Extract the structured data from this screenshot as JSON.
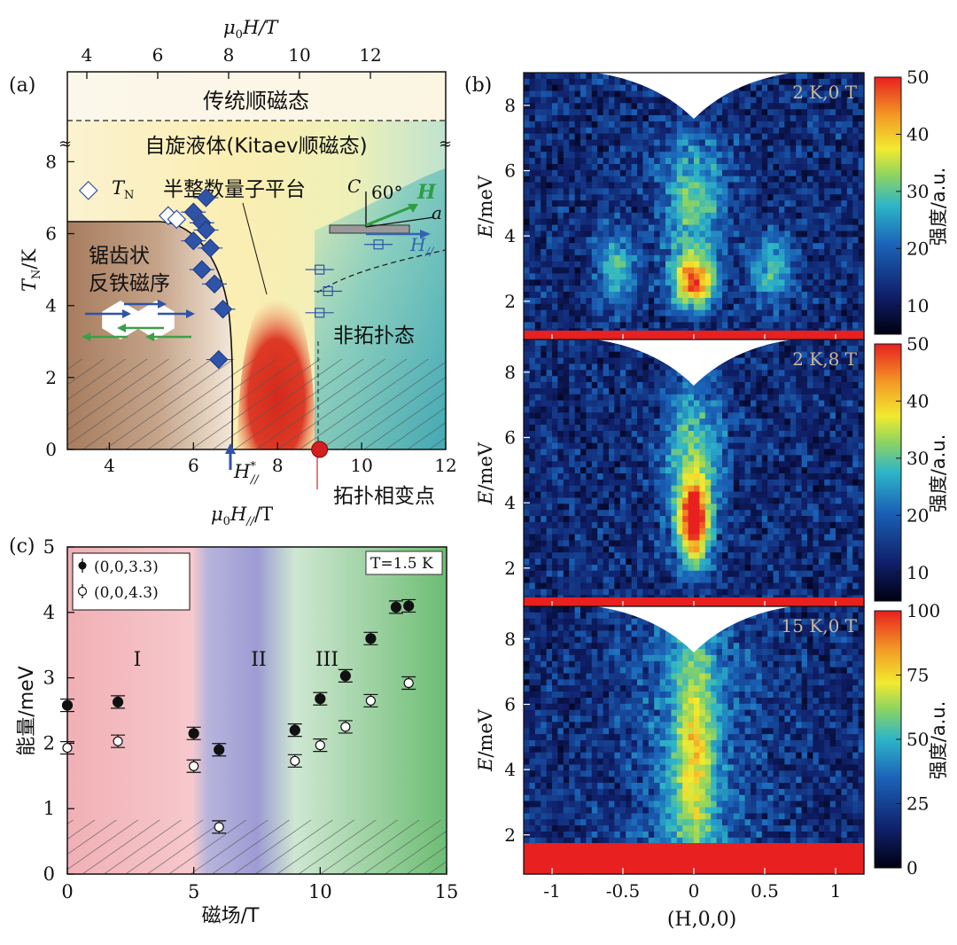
{
  "chart_data": [
    {
      "panel": "(a)",
      "type": "scatter",
      "top_axis": {
        "label_mu": "μ",
        "label_sub": "0",
        "label_rest": "H/T",
        "ticks": [
          4,
          6,
          8,
          10,
          12
        ]
      },
      "xaxis": {
        "label_mu": "μ",
        "label_sub": "0",
        "label_H": "H",
        "label_Hsub": "//",
        "label_rest": "/T",
        "ticks": [
          4,
          6,
          8,
          10,
          12
        ],
        "xlim": [
          3,
          12
        ]
      },
      "yaxis": {
        "label_T": "T",
        "label_sub": "N",
        "label_rest": "/K",
        "ticks": [
          0,
          2,
          4,
          6,
          8
        ],
        "ylim": [
          0,
          10.5
        ]
      },
      "regions": {
        "conventional_paramagnet": "传统顺磁态",
        "spin_liquid": "自旋液体(Kitaev顺磁态)",
        "zigzag_line1": "锯齿状",
        "zigzag_line2": "反铁磁序",
        "half_quantized": "半整数量子平台",
        "non_topological": "非拓扑态",
        "transition_point": "拓扑相变点"
      },
      "labels": {
        "tn_T": "T",
        "tn_sub": "N",
        "c_axis": "C",
        "angle": "60°",
        "field_H": "H",
        "a_axis": "a",
        "h_par": "H",
        "h_par_sub": "//",
        "h_star": "H",
        "h_star_sup": "*",
        "h_star_sub": "//"
      },
      "filled_diamonds": [
        [
          6.3,
          7.0
        ],
        [
          6.0,
          6.6
        ],
        [
          6.2,
          6.3
        ],
        [
          6.3,
          6.1
        ],
        [
          6.0,
          5.8
        ],
        [
          6.4,
          5.6
        ],
        [
          6.2,
          5.0
        ],
        [
          6.5,
          4.6
        ],
        [
          6.7,
          3.9
        ],
        [
          6.6,
          2.5
        ]
      ],
      "open_diamonds": [
        [
          3.5,
          7.2
        ],
        [
          5.4,
          6.5
        ],
        [
          5.6,
          6.4
        ]
      ],
      "open_squares": [
        [
          9.0,
          5.0
        ],
        [
          9.2,
          4.4
        ],
        [
          9.0,
          3.8
        ],
        [
          10.4,
          5.7
        ]
      ],
      "transition_field_T": 9.0,
      "critical_field_T": 7.0
    },
    {
      "panel": "(b)",
      "type": "heatmap",
      "xaxis": {
        "label": "(H,0,0)",
        "ticks": [
          "-1",
          "-0.5",
          "0",
          "0.5",
          "1"
        ],
        "xlim": [
          -1.2,
          1.2
        ]
      },
      "yaxis": {
        "label_E": "E",
        "label_rest": "/meV",
        "ticks": [
          2,
          4,
          6,
          8
        ],
        "ylim": [
          0.8,
          9
        ]
      },
      "colorbar_label": "强度/a.u.",
      "panels": [
        {
          "condition": "2 K,0 T",
          "cbar_ticks": [
            "10",
            "20",
            "30",
            "40",
            "50"
          ],
          "cbar_max": 50
        },
        {
          "condition": "2 K,8 T",
          "cbar_ticks": [
            "10",
            "20",
            "30",
            "40",
            "50"
          ],
          "cbar_max": 50
        },
        {
          "condition": "15 K,0 T",
          "cbar_ticks": [
            "0",
            "25",
            "50",
            "75",
            "100"
          ],
          "cbar_max": 100
        }
      ]
    },
    {
      "panel": "(c)",
      "type": "scatter",
      "xaxis": {
        "label": "磁场/T",
        "ticks": [
          0,
          5,
          10,
          15
        ],
        "xlim": [
          0,
          15
        ]
      },
      "yaxis": {
        "label": "能量/meV",
        "ticks": [
          0,
          1,
          2,
          3,
          4,
          5
        ],
        "ylim": [
          0,
          5
        ]
      },
      "temperature": "T=1.5 K",
      "region_labels": [
        "I",
        "II",
        "III"
      ],
      "series": [
        {
          "name": "(0,0,3.3)",
          "marker": "filled",
          "x": [
            0,
            2,
            5,
            6,
            9,
            10,
            11,
            12,
            13,
            13.5
          ],
          "y": [
            2.58,
            2.63,
            2.15,
            1.9,
            2.2,
            2.68,
            3.03,
            3.6,
            4.08,
            4.1
          ]
        },
        {
          "name": "(0,0,4.3)",
          "marker": "open",
          "x": [
            0,
            2,
            5,
            6,
            9,
            10,
            11,
            12,
            13.5
          ],
          "y": [
            1.93,
            2.03,
            1.65,
            0.72,
            1.73,
            1.97,
            2.25,
            2.65,
            2.92
          ]
        }
      ]
    }
  ]
}
